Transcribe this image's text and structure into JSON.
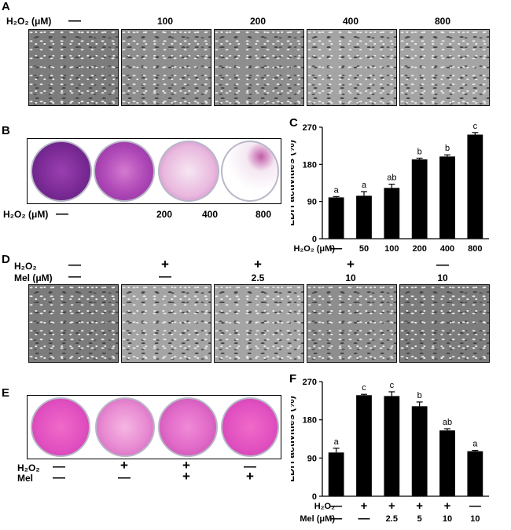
{
  "panelA": {
    "letter": "A",
    "row_label": "H₂O₂ (μM)",
    "conditions": [
      "—",
      "100",
      "200",
      "400",
      "800"
    ]
  },
  "panelB": {
    "letter": "B",
    "row_label": "H₂O₂ (μM)",
    "conditions": [
      "—",
      "200",
      "400",
      "800"
    ]
  },
  "panelD": {
    "letter": "D",
    "row1_label": "H₂O₂",
    "row2_label": "Mel (μM)",
    "row1": [
      "—",
      "+",
      "+",
      "+",
      "—"
    ],
    "row2": [
      "—",
      "—",
      "2.5",
      "10",
      "10"
    ]
  },
  "panelE": {
    "letter": "E",
    "row1_label": "H₂O₂",
    "row2_label": "Mel",
    "row1": [
      "—",
      "+",
      "+",
      "—"
    ],
    "row2": [
      "—",
      "—",
      "+",
      "+"
    ]
  },
  "chart_data": [
    {
      "panel": "C",
      "type": "bar",
      "ylabel": "LDH activities (%)",
      "yticks": [
        0,
        90,
        180,
        270
      ],
      "ylim": [
        0,
        270
      ],
      "row_labels": [
        "H₂O₂ (μM)"
      ],
      "categories": [
        "—",
        "50",
        "100",
        "200",
        "400",
        "800"
      ],
      "values": [
        100,
        104,
        123,
        192,
        199,
        252
      ],
      "errors": [
        2,
        10,
        9,
        3,
        4,
        5
      ],
      "significance": [
        "a",
        "a",
        "ab",
        "b",
        "b",
        "c"
      ]
    },
    {
      "panel": "F",
      "type": "bar",
      "ylabel": "LDH activities (%)",
      "yticks": [
        0,
        90,
        180,
        270
      ],
      "ylim": [
        0,
        270
      ],
      "row_labels": [
        "H₂O₂",
        "Mel (μM)"
      ],
      "row1": [
        "—",
        "+",
        "+",
        "+",
        "+",
        "—"
      ],
      "categories": [
        "—",
        "—",
        "2.5",
        "5",
        "10",
        "10"
      ],
      "values": [
        103,
        238,
        236,
        212,
        155,
        106
      ],
      "errors": [
        10,
        2,
        10,
        10,
        4,
        2
      ],
      "significance": [
        "a",
        "c",
        "c",
        "b",
        "ab",
        "a"
      ]
    }
  ]
}
